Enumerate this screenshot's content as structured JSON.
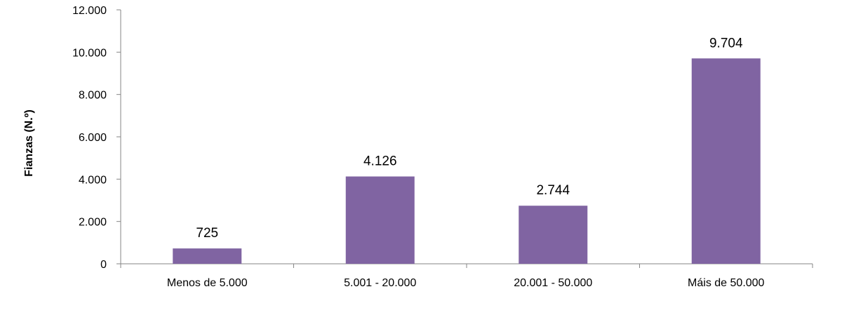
{
  "chart_data": {
    "type": "bar",
    "title": "",
    "xlabel": "",
    "ylabel": "Fianzas (N.º)",
    "categories": [
      "Menos de 5.000",
      "5.001 - 20.000",
      "20.001 - 50.000",
      "Máis de 50.000"
    ],
    "values": [
      725,
      4126,
      2744,
      9704
    ],
    "value_labels": [
      "725",
      "4.126",
      "2.744",
      "9.704"
    ],
    "ylim": [
      0,
      12000
    ],
    "yticks": [
      0,
      2000,
      4000,
      6000,
      8000,
      10000,
      12000
    ],
    "ytick_labels": [
      "0",
      "2.000",
      "4.000",
      "6.000",
      "8.000",
      "10.000",
      "12.000"
    ],
    "grid": false,
    "legend": "none",
    "bar_color": "#8064a2"
  }
}
